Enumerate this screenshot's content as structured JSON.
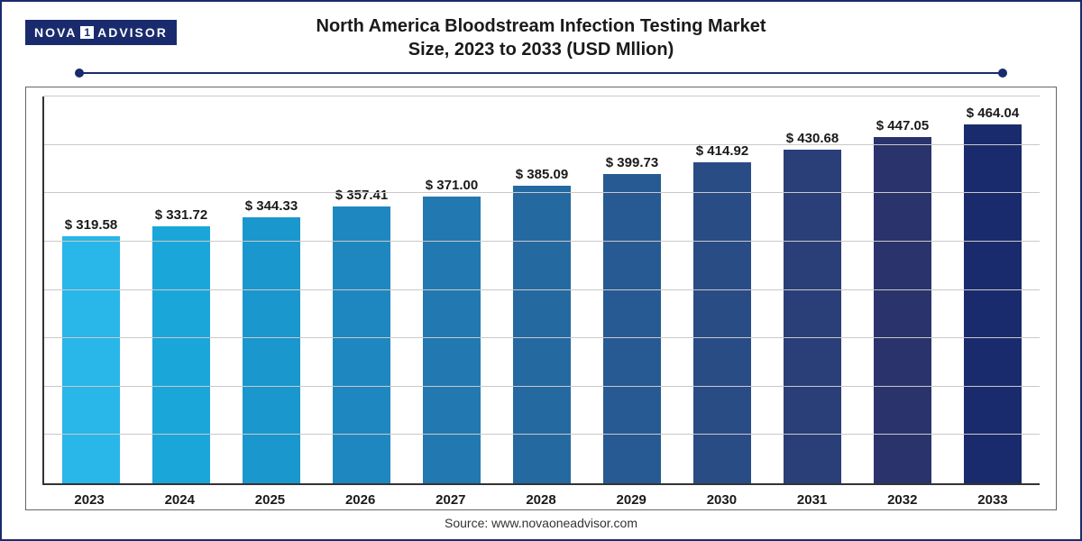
{
  "logo": {
    "part1": "NOVA",
    "one": "1",
    "part2": "ADVISOR"
  },
  "title_line1": "North America Bloodstream Infection Testing Market",
  "title_line2": "Size, 2023 to 2033 (USD Mllion)",
  "source_text": "Source: www.novaoneadvisor.com",
  "chart": {
    "type": "bar",
    "value_prefix": "$ ",
    "ylim_max": 500,
    "gridline_count": 8,
    "gridline_color": "#c9c9c9",
    "axis_color": "#333333",
    "background_color": "#ffffff",
    "title_fontsize": 20,
    "label_fontsize": 15,
    "categories": [
      "2023",
      "2024",
      "2025",
      "2026",
      "2027",
      "2028",
      "2029",
      "2030",
      "2031",
      "2032",
      "2033"
    ],
    "values": [
      319.58,
      331.72,
      344.33,
      357.41,
      371.0,
      385.09,
      399.73,
      414.92,
      430.68,
      447.05,
      464.04
    ],
    "value_labels": [
      "319.58",
      "331.72",
      "344.33",
      "357.41",
      "371.00",
      "385.09",
      "399.73",
      "414.92",
      "430.68",
      "447.05",
      "464.04"
    ],
    "bar_colors": [
      "#29b6e8",
      "#1ba6d9",
      "#1a97cc",
      "#1f87bf",
      "#2278b0",
      "#2569a1",
      "#275a93",
      "#294c85",
      "#2a3f78",
      "#2a336c",
      "#1a2b6d"
    ],
    "bar_width_pct": 64
  }
}
